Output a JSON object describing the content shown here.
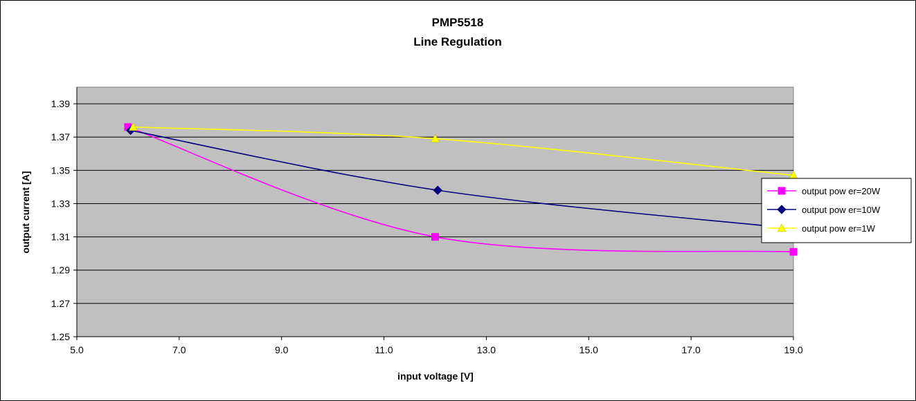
{
  "chart_data": {
    "type": "line",
    "title": "PMP5518",
    "subtitle": "Line Regulation",
    "xlabel": "input voltage [V]",
    "ylabel": "output current [A]",
    "xlim": [
      5.0,
      19.0
    ],
    "ylim": [
      1.25,
      1.4
    ],
    "x_ticks": [
      "5.0",
      "7.0",
      "9.0",
      "11.0",
      "13.0",
      "15.0",
      "17.0",
      "19.0"
    ],
    "y_ticks": [
      "1.25",
      "1.27",
      "1.29",
      "1.31",
      "1.33",
      "1.35",
      "1.37",
      "1.39"
    ],
    "grid": "horizontal",
    "plot_background": "#c0c0c0",
    "legend_position": "right",
    "series": [
      {
        "name": "output pow er=20W",
        "color": "#ff00ff",
        "marker": "square",
        "x": [
          6.0,
          12.0,
          19.0
        ],
        "y": [
          1.376,
          1.31,
          1.301
        ]
      },
      {
        "name": "output pow er=10W",
        "color": "#000080",
        "marker": "diamond",
        "x": [
          6.05,
          12.05,
          19.0
        ],
        "y": [
          1.374,
          1.338,
          1.315
        ]
      },
      {
        "name": "output pow er=1W",
        "color": "#ffff00",
        "marker": "triangle",
        "x": [
          6.1,
          12.0,
          19.0
        ],
        "y": [
          1.376,
          1.369,
          1.347
        ]
      }
    ]
  }
}
